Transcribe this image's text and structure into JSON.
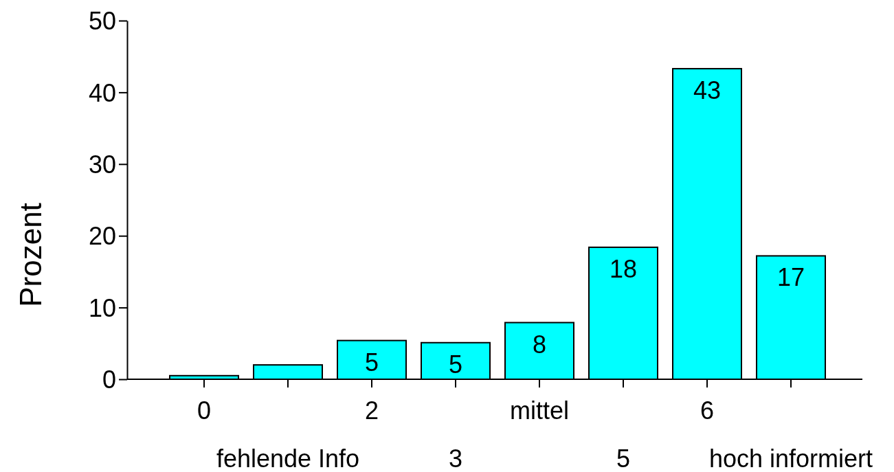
{
  "chart_data": {
    "type": "bar",
    "ylabel": "Prozent",
    "categories": [
      "0",
      "fehlende Info",
      "2",
      "3",
      "mittel",
      "5",
      "6",
      "hoch informiert"
    ],
    "values": [
      0.5,
      2,
      5.4,
      5.1,
      7.9,
      18.4,
      43.3,
      17.2
    ],
    "value_labels": [
      null,
      null,
      "5",
      "5",
      "8",
      "18",
      "43",
      "17"
    ],
    "color": "#00ffff",
    "ylim": [
      0,
      50
    ],
    "yticks": [
      0,
      10,
      20,
      30,
      40,
      50
    ]
  }
}
